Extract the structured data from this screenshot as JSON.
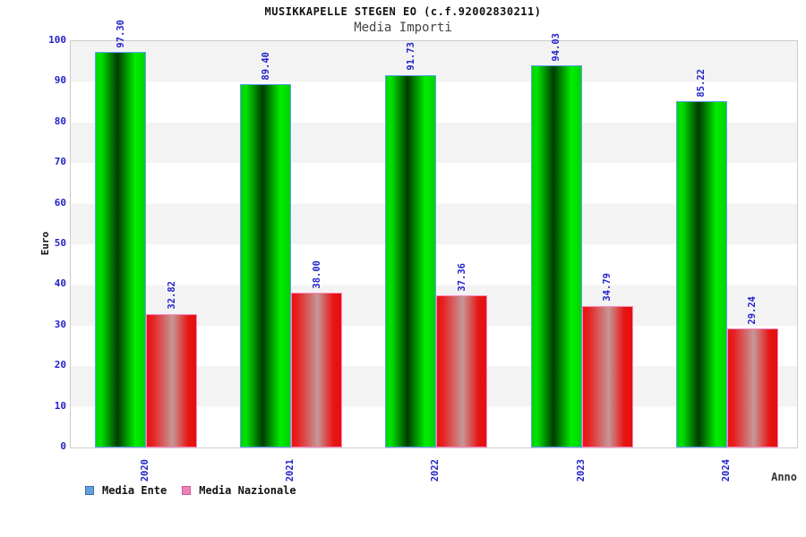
{
  "chart_data": {
    "type": "bar",
    "title": "MUSIKKAPELLE STEGEN EO (c.f.92002830211)",
    "subtitle": "Media Importi",
    "xlabel": "Anno",
    "ylabel": "Euro",
    "categories": [
      "2020",
      "2021",
      "2022",
      "2023",
      "2024"
    ],
    "series": [
      {
        "name": "Media Ente",
        "values": [
          97.3,
          89.4,
          91.73,
          94.03,
          85.22
        ],
        "labels": [
          "97.30",
          "89.40",
          "91.73",
          "94.03",
          "85.22"
        ],
        "legend_fill": "#64a0dc",
        "legend_border": "#3a6ea8",
        "bar_border": "#5aa2ee",
        "fill_stops": [
          {
            "color": "#00d400",
            "pos": 0
          },
          {
            "color": "#00e400",
            "pos": 10
          },
          {
            "color": "#003c00",
            "pos": 44
          },
          {
            "color": "#00ee00",
            "pos": 80
          },
          {
            "color": "#00d200",
            "pos": 100
          }
        ]
      },
      {
        "name": "Media Nazionale",
        "values": [
          32.82,
          38.0,
          37.36,
          34.79,
          29.24
        ],
        "labels": [
          "32.82",
          "38.00",
          "37.36",
          "34.79",
          "29.24"
        ],
        "legend_fill": "#ee82b8",
        "legend_border": "#c85a96",
        "bar_border": "#ff86c0",
        "fill_stops": [
          {
            "color": "#ea1212",
            "pos": 0
          },
          {
            "color": "#e62222",
            "pos": 12
          },
          {
            "color": "#c69797",
            "pos": 52
          },
          {
            "color": "#e81414",
            "pos": 84
          },
          {
            "color": "#e21010",
            "pos": 100
          }
        ]
      }
    ],
    "ylim": [
      0,
      100
    ],
    "yticks": [
      0,
      10,
      20,
      30,
      40,
      50,
      60,
      70,
      80,
      90,
      100
    ],
    "grid_bands": true,
    "band_colors": [
      "#f3f3f3",
      "#ffffff"
    ],
    "axis_text_color": "#2323cb",
    "plot_border_color": "#cccccc",
    "legend_position": "bottom-left"
  }
}
